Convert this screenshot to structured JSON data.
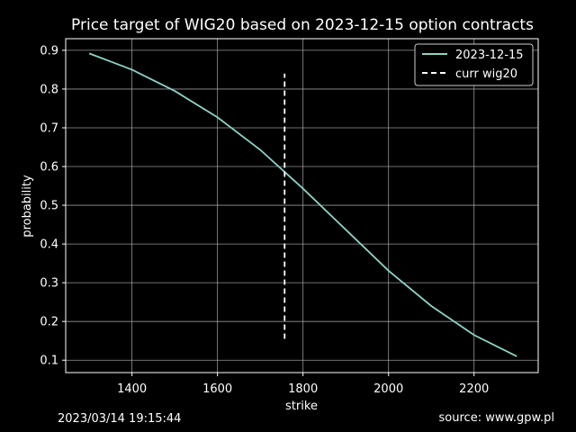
{
  "chart_data": {
    "type": "line",
    "title": "Price target of WIG20 based on 2023-12-15 option contracts",
    "xlabel": "strike",
    "ylabel": "probability",
    "xlim": [
      1245,
      2350
    ],
    "ylim": [
      0.068,
      0.93
    ],
    "xticks": [
      1400,
      1600,
      1800,
      2000,
      2200
    ],
    "yticks": [
      0.1,
      0.2,
      0.3,
      0.4,
      0.5,
      0.6,
      0.7,
      0.8,
      0.9
    ],
    "grid": true,
    "legend_position": "top-right",
    "series": [
      {
        "name": "2023-12-15",
        "color": "#8dd3c7",
        "style": "solid",
        "x": [
          1300,
          1400,
          1500,
          1600,
          1700,
          1800,
          1900,
          2000,
          2100,
          2200,
          2300
        ],
        "y": [
          0.892,
          0.85,
          0.795,
          0.727,
          0.643,
          0.543,
          0.437,
          0.331,
          0.24,
          0.165,
          0.11
        ]
      },
      {
        "name": "curr wig20",
        "color": "#ffffff",
        "style": "dashed",
        "x": [
          1757,
          1757
        ],
        "y": [
          0.155,
          0.84
        ]
      }
    ]
  },
  "footer": {
    "timestamp": "2023/03/14 19:15:44",
    "source": "source: www.gpw.pl"
  }
}
